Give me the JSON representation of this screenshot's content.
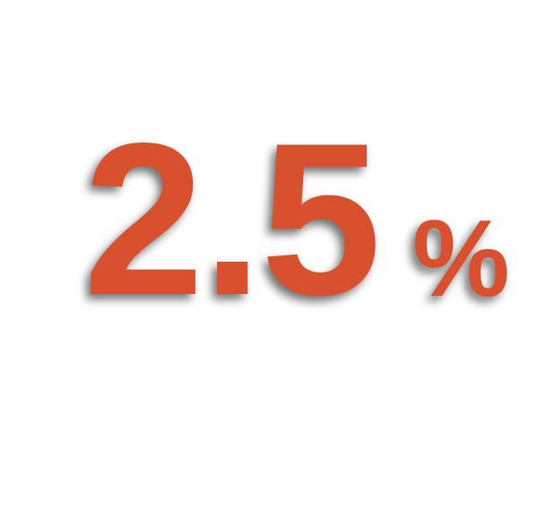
{
  "statistic": {
    "number": "2.5",
    "unit": "%"
  }
}
